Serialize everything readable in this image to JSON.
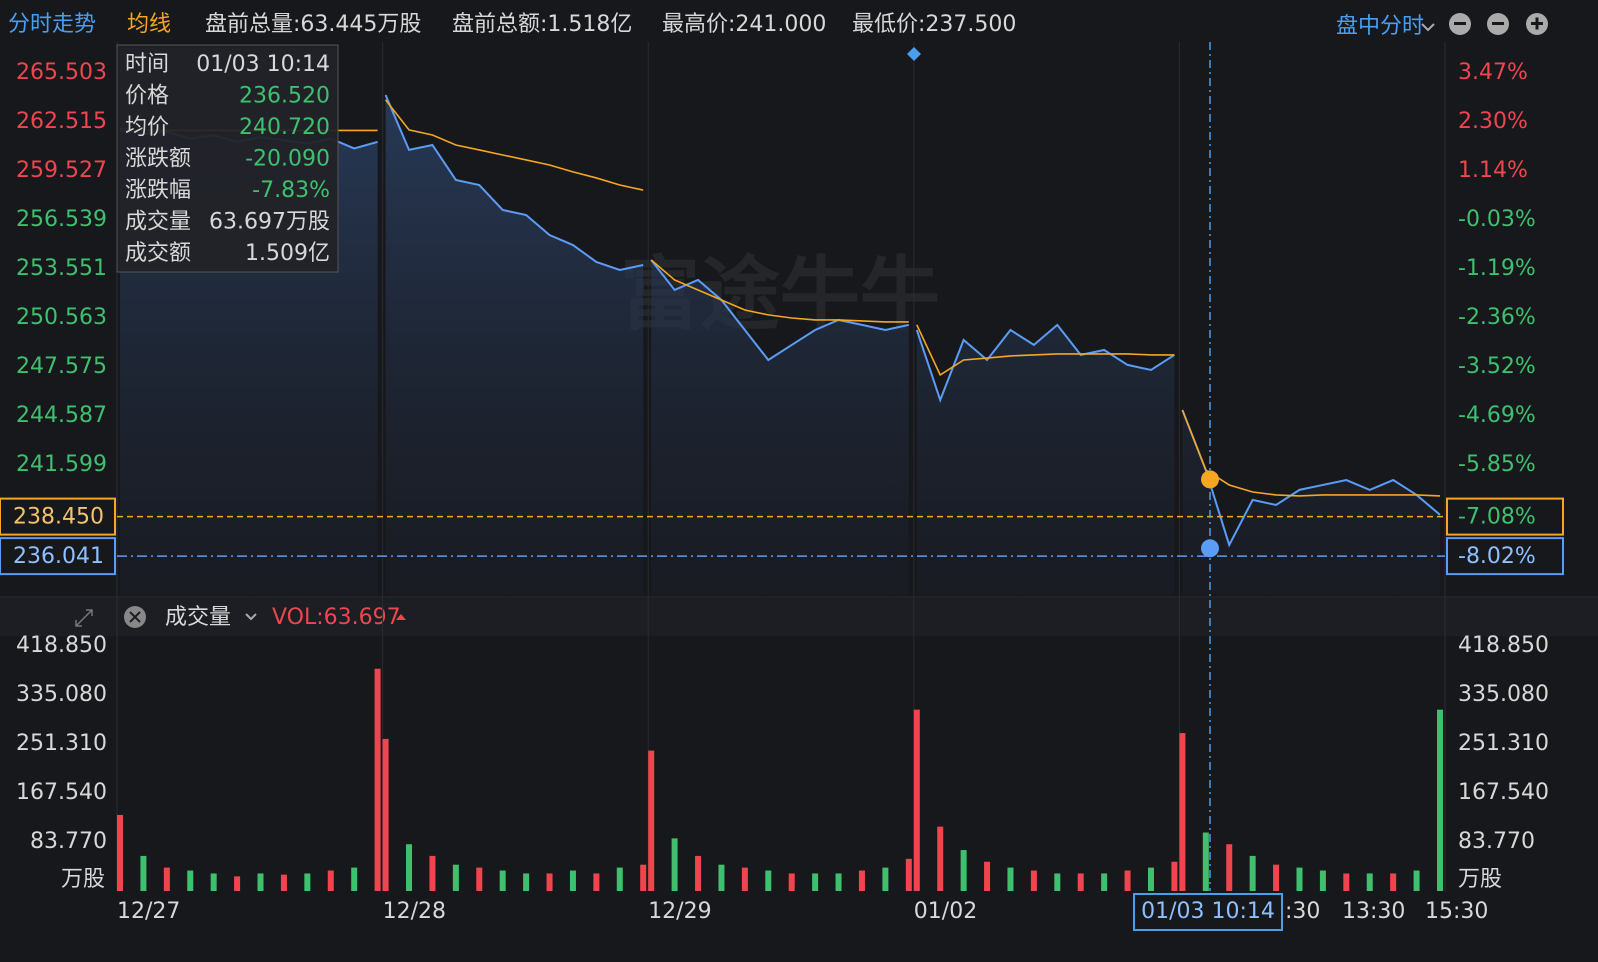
{
  "header": {
    "items": [
      "分时走势",
      "均线",
      "盘前总量:63.445万股",
      "盘前总额:1.518亿",
      "最高价:241.000",
      "最低价:237.500"
    ],
    "mode": "盘中分时"
  },
  "tooltip": {
    "rows": [
      [
        "时间",
        "01/03 10:14"
      ],
      [
        "价格",
        "236.520"
      ],
      [
        "均价",
        "240.720"
      ],
      [
        "涨跌额",
        "-20.090"
      ],
      [
        "涨跌幅",
        "-7.83%"
      ],
      [
        "成交量",
        "63.697万股"
      ],
      [
        "成交额",
        "1.509亿"
      ]
    ]
  },
  "watermark": "富途牛牛",
  "volume_header": {
    "label": "成交量",
    "vol": "VOL:63.697"
  },
  "x_labels": {
    "days": [
      "12/27",
      "12/28",
      "12/29",
      "01/02"
    ],
    "crosshair": "01/03 10:14",
    "times": [
      ":30",
      "13:30",
      "15:30"
    ]
  },
  "chart_data": [
    {
      "type": "line",
      "ylim": [
        233.67,
        267.39
      ],
      "yticks": [
        265.503,
        262.515,
        259.527,
        256.539,
        253.551,
        250.563,
        247.575,
        244.587,
        241.599
      ],
      "y2lim": [
        -8.94,
        4.207
      ],
      "y2ticks": [
        {
          "value": 3.47,
          "label": "3.47%"
        },
        {
          "value": 2.3,
          "label": "2.30%"
        },
        {
          "value": 1.14,
          "label": "1.14%"
        },
        {
          "value": -0.03,
          "label": "-0.03%"
        },
        {
          "value": -1.19,
          "label": "-1.19%"
        },
        {
          "value": -2.36,
          "label": "-2.36%"
        },
        {
          "value": -3.52,
          "label": "-3.52%"
        },
        {
          "value": -4.69,
          "label": "-4.69%"
        },
        {
          "value": -5.85,
          "label": "-5.85%"
        }
      ],
      "series": [
        {
          "name": "价格",
          "color": "#5b9cf6",
          "values": [
            262.0,
            261.8,
            261.9,
            261.5,
            261.7,
            261.3,
            261.6,
            261.4,
            261.2,
            261.5,
            260.9,
            261.3,
            null,
            264.16,
            260.81,
            261.11,
            258.98,
            258.67,
            257.15,
            256.84,
            255.62,
            255.01,
            253.98,
            253.49,
            253.79,
            null,
            254.1,
            252.27,
            252.88,
            251.66,
            249.83,
            248.0,
            248.92,
            249.83,
            250.44,
            250.14,
            249.83,
            250.14,
            null,
            249.83,
            245.56,
            249.22,
            248.0,
            249.83,
            248.92,
            250.14,
            248.31,
            248.61,
            247.7,
            247.39,
            248.31,
            null,
            244.95,
            241.29,
            236.72,
            239.47,
            239.16,
            240.08,
            240.38,
            240.68,
            240.08,
            240.68,
            239.77,
            238.56
          ]
        },
        {
          "name": "均线",
          "color": "#f5a623",
          "values": [
            262.1,
            262.0,
            262.0,
            262.0,
            262.0,
            262.0,
            262.0,
            262.0,
            262.0,
            262.0,
            262.0,
            262.0,
            null,
            263.86,
            262.03,
            261.72,
            261.11,
            260.81,
            260.5,
            260.2,
            259.89,
            259.47,
            259.1,
            258.67,
            258.36,
            null,
            254.1,
            252.88,
            252.27,
            251.66,
            251.05,
            250.75,
            250.56,
            250.44,
            250.44,
            250.38,
            250.32,
            250.32,
            null,
            250.14,
            247.09,
            248.0,
            248.12,
            248.25,
            248.31,
            248.37,
            248.37,
            248.37,
            248.37,
            248.31,
            248.31,
            null,
            244.95,
            241.29,
            240.38,
            239.95,
            239.77,
            239.71,
            239.77,
            239.77,
            239.77,
            239.77,
            239.77,
            239.71
          ]
        }
      ],
      "ref_lines": [
        {
          "value": 238.45,
          "label": "238.450",
          "pct_label": "-7.08%",
          "color": "#f5a623"
        },
        {
          "value": 236.041,
          "label": "236.041",
          "pct_label": "-8.02%",
          "color": "#5b9cf6"
        }
      ],
      "crosshair": {
        "price": 236.52,
        "avg": 240.72
      }
    },
    {
      "type": "bar",
      "unit": "万股",
      "ylim": [
        0,
        429.1
      ],
      "yticks": [
        {
          "value": 418.85,
          "label": "418.850"
        },
        {
          "value": 335.08,
          "label": "335.080"
        },
        {
          "value": 251.31,
          "label": "251.310"
        },
        {
          "value": 167.54,
          "label": "167.540"
        },
        {
          "value": 83.77,
          "label": "83.770"
        }
      ],
      "values": [
        130,
        60,
        40,
        35,
        30,
        25,
        30,
        28,
        30,
        35,
        40,
        380,
        260,
        80,
        60,
        45,
        40,
        35,
        30,
        30,
        35,
        30,
        40,
        45,
        240,
        90,
        60,
        45,
        40,
        35,
        30,
        30,
        30,
        35,
        40,
        55,
        310,
        110,
        70,
        50,
        40,
        35,
        30,
        30,
        30,
        35,
        40,
        50,
        270,
        100,
        80,
        60,
        45,
        40,
        35,
        30,
        30,
        30,
        35,
        310
      ],
      "colors": [
        "#f0454f",
        "#3ec06e",
        "#f0454f",
        "#3ec06e",
        "#3ec06e",
        "#f0454f",
        "#3ec06e",
        "#f0454f",
        "#3ec06e",
        "#f0454f",
        "#3ec06e",
        "#f0454f",
        "#f0454f",
        "#3ec06e",
        "#f0454f",
        "#3ec06e",
        "#f0454f",
        "#3ec06e",
        "#3ec06e",
        "#f0454f",
        "#3ec06e",
        "#f0454f",
        "#3ec06e",
        "#f0454f",
        "#f0454f",
        "#3ec06e",
        "#f0454f",
        "#3ec06e",
        "#f0454f",
        "#3ec06e",
        "#f0454f",
        "#3ec06e",
        "#3ec06e",
        "#f0454f",
        "#3ec06e",
        "#f0454f",
        "#f0454f",
        "#f0454f",
        "#3ec06e",
        "#f0454f",
        "#3ec06e",
        "#f0454f",
        "#3ec06e",
        "#f0454f",
        "#3ec06e",
        "#f0454f",
        "#3ec06e",
        "#f0454f",
        "#f0454f",
        "#3ec06e",
        "#f0454f",
        "#3ec06e",
        "#f0454f",
        "#3ec06e",
        "#3ec06e",
        "#f0454f",
        "#3ec06e",
        "#f0454f",
        "#3ec06e",
        "#3ec06e"
      ]
    }
  ]
}
